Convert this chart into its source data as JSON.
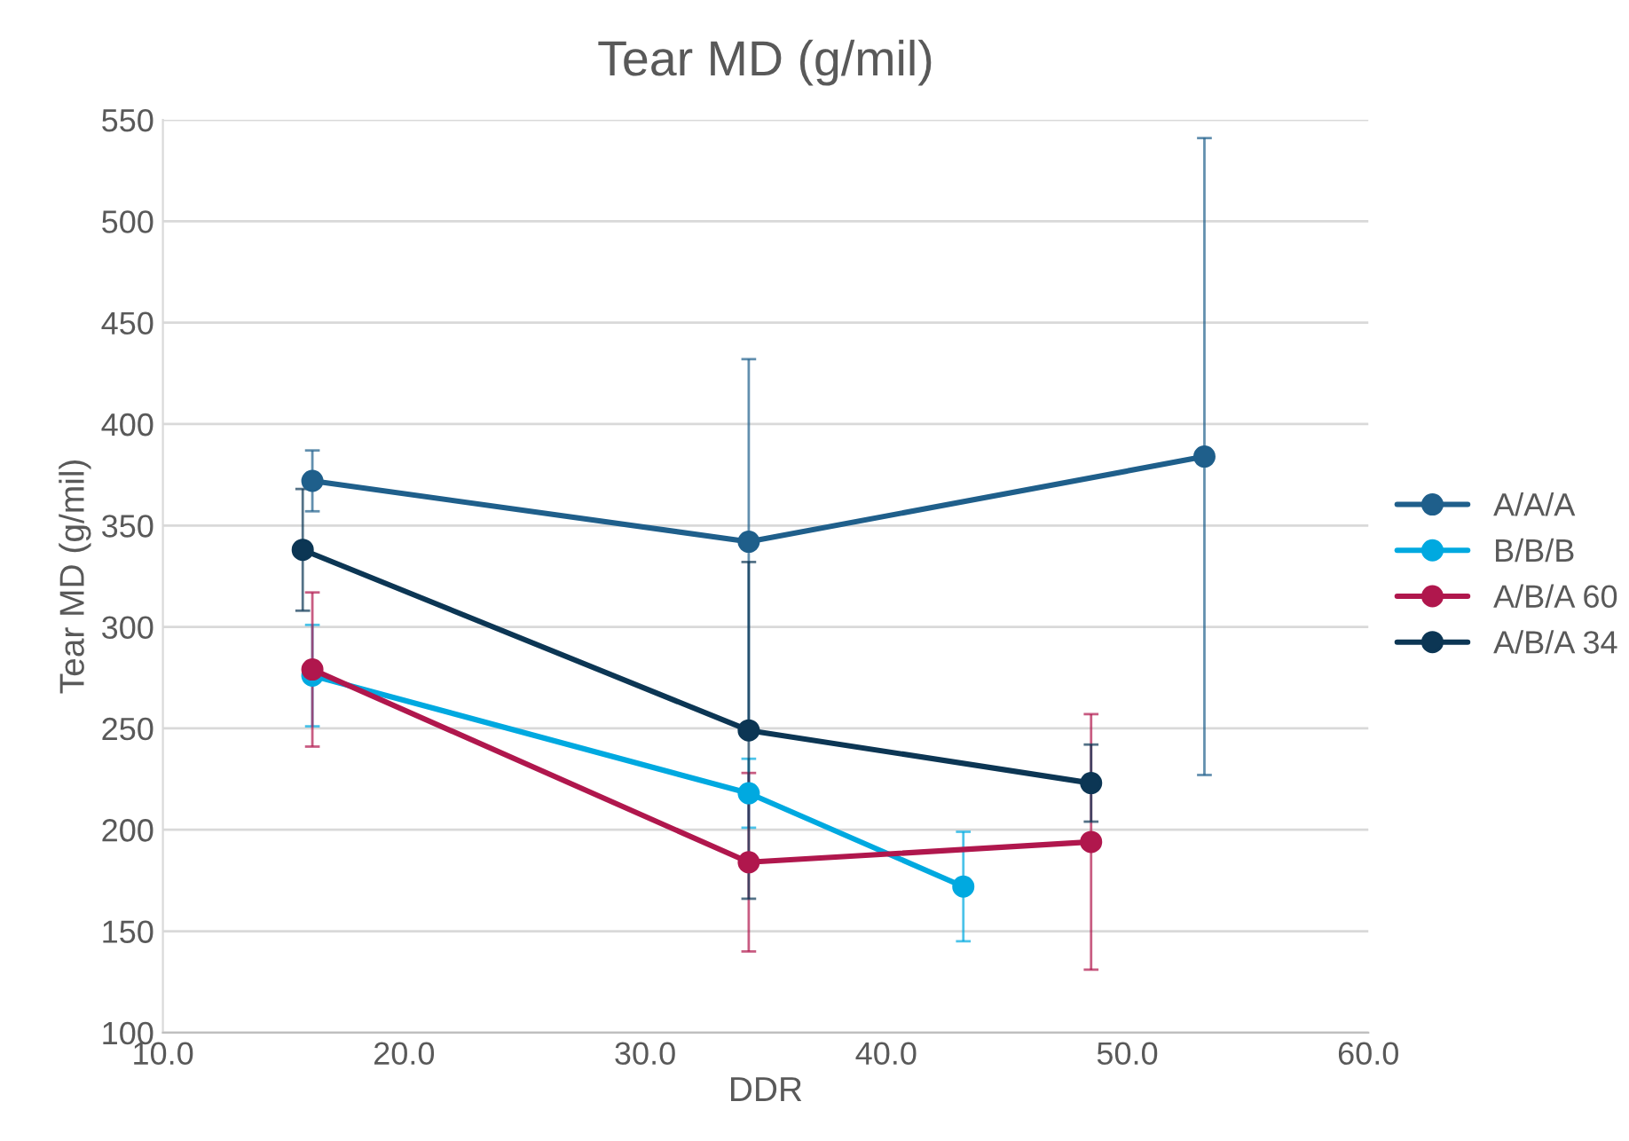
{
  "chart_data": {
    "type": "line",
    "title": "Tear MD (g/mil)",
    "xlabel": "DDR",
    "ylabel": "Tear MD (g/mil)",
    "xlim": [
      10,
      60
    ],
    "xticks": [
      {
        "value": 10,
        "label": "10.0"
      },
      {
        "value": 20,
        "label": "20.0"
      },
      {
        "value": 30,
        "label": "30.0"
      },
      {
        "value": 40,
        "label": "40.0"
      },
      {
        "value": 50,
        "label": "50.0"
      },
      {
        "value": 60,
        "label": "60.0"
      }
    ],
    "ylim": [
      100,
      550
    ],
    "yticks": [
      100,
      150,
      200,
      250,
      300,
      350,
      400,
      450,
      500,
      550
    ],
    "grid": "y",
    "legend": "right",
    "marker": "circle",
    "line_style": "solid",
    "series": [
      {
        "name": "A/A/A",
        "color": "#1f5f8b",
        "x": [
          16.2,
          34.3,
          53.2
        ],
        "values": [
          372,
          342,
          384
        ],
        "errors": [
          15,
          90,
          157
        ]
      },
      {
        "name": "B/B/B",
        "color": "#00a9e0",
        "x": [
          16.2,
          34.3,
          43.2
        ],
        "values": [
          276,
          218,
          172
        ],
        "errors": [
          25,
          17,
          27
        ]
      },
      {
        "name": "A/B/A 60",
        "color": "#b0174d",
        "x": [
          16.2,
          34.3,
          48.5
        ],
        "values": [
          279,
          184,
          194
        ],
        "errors": [
          38,
          44,
          63
        ]
      },
      {
        "name": "A/B/A 34",
        "color": "#0c3654",
        "x": [
          15.8,
          34.3,
          48.5
        ],
        "values": [
          338,
          249,
          223
        ],
        "errors": [
          30,
          83,
          19
        ]
      }
    ]
  }
}
